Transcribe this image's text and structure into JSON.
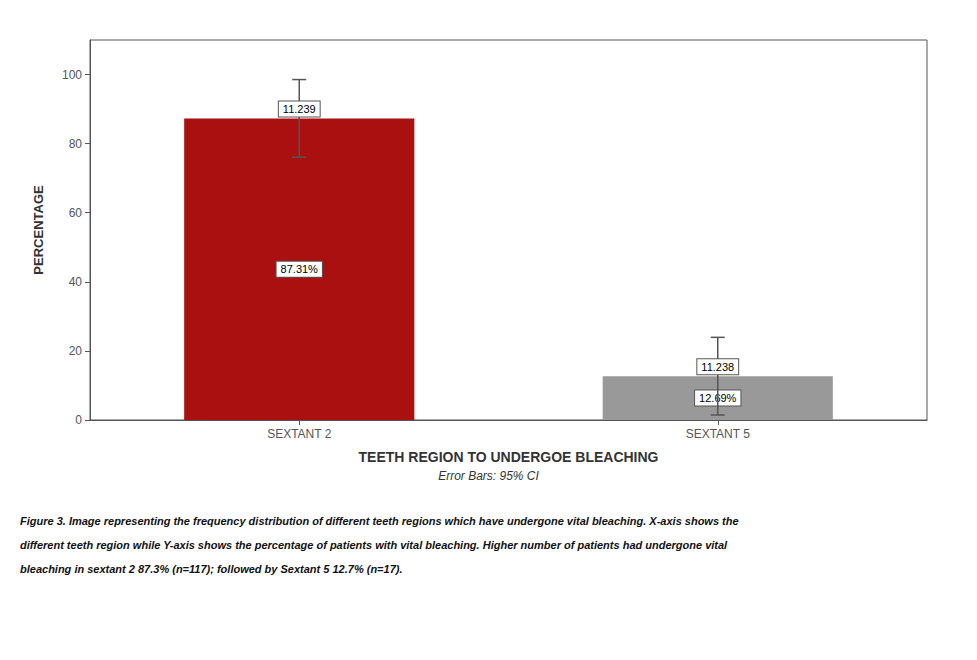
{
  "chart_data": {
    "type": "bar",
    "categories": [
      "SEXTANT 2",
      "SEXTANT 5"
    ],
    "values": [
      87.31,
      12.69
    ],
    "value_labels": [
      "87.31%",
      "12.69%"
    ],
    "data_labels": true,
    "errors": [
      11.239,
      11.238
    ],
    "colors": [
      "#aa1010",
      "#999999"
    ],
    "xlabel": "TEETH REGION TO UNDERGOE BLEACHING",
    "ylabel": "PERCENTAGE",
    "ylim": [
      0,
      110
    ],
    "yticks": [
      0,
      20,
      40,
      60,
      80,
      100
    ],
    "grid": false,
    "annotations": [
      "Error Bars: 95% CI"
    ],
    "caption": [
      "Figure 3. Image representing the frequency distribution of different teeth regions which have undergone vital bleaching. X-axis shows the",
      "different teeth region while Y-axis shows the percentage of patients with vital bleaching. Higher number of patients had undergone vital",
      "bleaching in sextant 2 87.3% (n=117); followed by Sextant 5 12.7% (n=17)."
    ]
  }
}
